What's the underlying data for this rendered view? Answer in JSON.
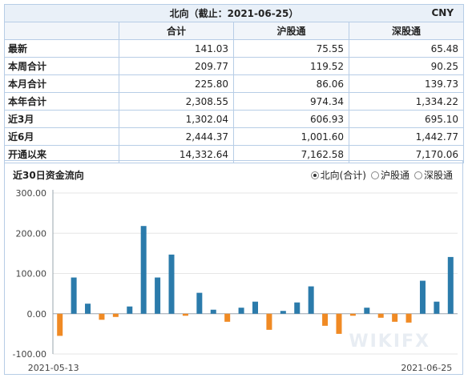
{
  "table": {
    "title": "北向（截止：2021-06-25）",
    "currency": "CNY",
    "columns": [
      "合计",
      "沪股通",
      "深股通"
    ],
    "rows": [
      {
        "label": "最新",
        "values": [
          "141.03",
          "75.55",
          "65.48"
        ]
      },
      {
        "label": "本周合计",
        "values": [
          "209.77",
          "119.52",
          "90.25"
        ]
      },
      {
        "label": "本月合计",
        "values": [
          "225.80",
          "86.06",
          "139.73"
        ]
      },
      {
        "label": "本年合计",
        "values": [
          "2,308.55",
          "974.34",
          "1,334.22"
        ]
      },
      {
        "label": "近3月",
        "values": [
          "1,302.04",
          "606.93",
          "695.10"
        ]
      },
      {
        "label": "近6月",
        "values": [
          "2,444.37",
          "1,001.60",
          "1,442.77"
        ]
      },
      {
        "label": "开通以来",
        "values": [
          "14,332.64",
          "7,162.58",
          "7,170.06"
        ]
      }
    ]
  },
  "chart_header": {
    "title": "近30日资金流向",
    "options": [
      {
        "label": "北向(合计)",
        "selected": true
      },
      {
        "label": "沪股通",
        "selected": false
      },
      {
        "label": "深股通",
        "selected": false
      }
    ]
  },
  "watermark": "WIKIFX",
  "chart_data": {
    "type": "bar",
    "title": "",
    "xlabel": "",
    "ylabel": "",
    "ylim": [
      -100,
      300
    ],
    "yticks": [
      "-100.00",
      "0.00",
      "100.00",
      "200.00",
      "300.00"
    ],
    "ytick_values": [
      -100,
      0,
      100,
      200,
      300
    ],
    "x_tick_labels": [
      "2021-05-13",
      "2021-06-25"
    ],
    "grid": true,
    "positive_color": "#2b7bab",
    "negative_color": "#f08a24",
    "values": [
      -55,
      90,
      25,
      -15,
      -8,
      18,
      218,
      90,
      147,
      -5,
      52,
      10,
      -20,
      15,
      30,
      -40,
      7,
      28,
      68,
      -30,
      -50,
      -5,
      15,
      -10,
      -20,
      -22,
      82,
      30,
      141
    ]
  }
}
